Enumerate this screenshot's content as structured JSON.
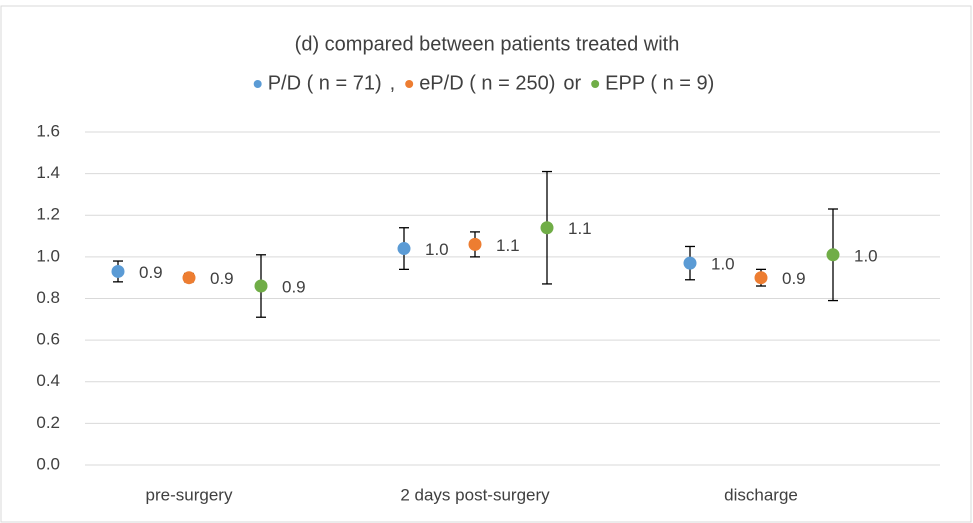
{
  "chart_data": {
    "type": "errorpoint",
    "title": "(d) compared between patients treated with",
    "legend_separators": [
      " ,",
      " or"
    ],
    "categories": [
      "pre-surgery",
      "2 days post-surgery",
      "discharge"
    ],
    "series": [
      {
        "name": "P/D ( n = 71)",
        "color": "#5b9bd5",
        "values": [
          0.93,
          1.04,
          0.97
        ],
        "errors": [
          0.05,
          0.1,
          0.08
        ],
        "value_labels": [
          "0.9",
          "1.0",
          "1.0"
        ]
      },
      {
        "name": "eP/D ( n = 250)",
        "color": "#ed7d31",
        "values": [
          0.9,
          1.06,
          0.9
        ],
        "errors": [
          0.02,
          0.06,
          0.04
        ],
        "value_labels": [
          "0.9",
          "1.1",
          "0.9"
        ]
      },
      {
        "name": "EPP ( n = 9)",
        "color": "#70ad47",
        "values": [
          0.86,
          1.14,
          1.01
        ],
        "errors": [
          0.15,
          0.27,
          0.22
        ],
        "value_labels": [
          "0.9",
          "1.1",
          "1.0"
        ]
      }
    ],
    "ylim": [
      0,
      1.6
    ],
    "yticks": [
      {
        "value": 0,
        "label": "0.0"
      },
      0.2,
      0.4,
      0.6,
      0.8,
      {
        "value": 1,
        "label": "1.0"
      },
      1.2,
      1.4,
      1.6
    ],
    "grid": true
  }
}
